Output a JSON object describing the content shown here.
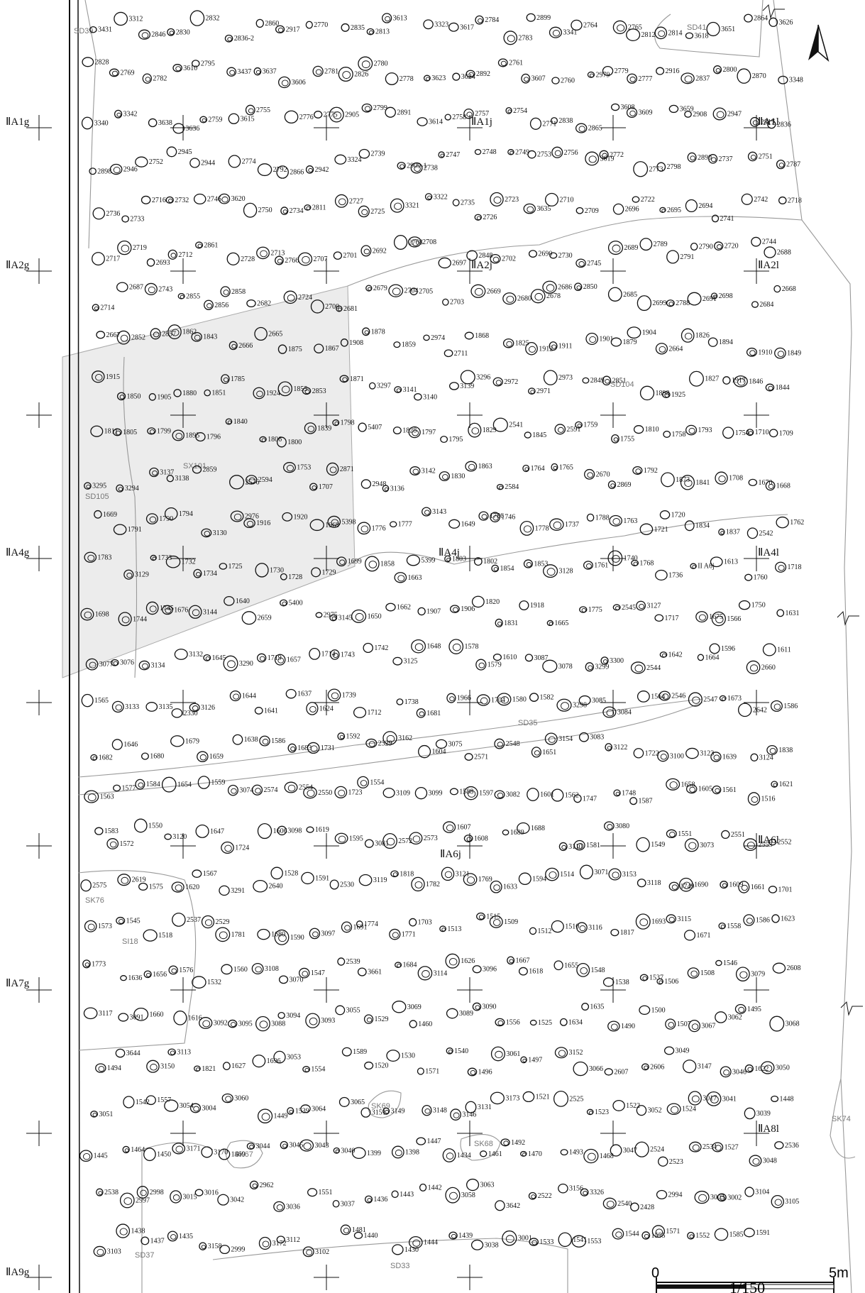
{
  "map": {
    "scale": {
      "start": "0",
      "ratio": "1/150",
      "end": "5m"
    },
    "north_arrow": "north-arrow",
    "grid_labels": [
      {
        "id": "A1g",
        "text": "ⅡA1g"
      },
      {
        "id": "A1j",
        "text": "ⅡA1j"
      },
      {
        "id": "A1l",
        "text": "ⅡA1l"
      },
      {
        "id": "A2g",
        "text": "ⅡA2g"
      },
      {
        "id": "A2j",
        "text": "ⅡA2j"
      },
      {
        "id": "A2l",
        "text": "ⅡA2l"
      },
      {
        "id": "A4g",
        "text": "ⅡA4g"
      },
      {
        "id": "A4j",
        "text": "ⅡA4j"
      },
      {
        "id": "A4l",
        "text": "ⅡA4l"
      },
      {
        "id": "A6j",
        "text": "ⅡA6j"
      },
      {
        "id": "A6l",
        "text": "ⅡA6l"
      },
      {
        "id": "A7g",
        "text": "ⅡA7g"
      },
      {
        "id": "A8l",
        "text": "ⅡA8l"
      },
      {
        "id": "A9g",
        "text": "ⅡA9g"
      }
    ],
    "features": [
      {
        "id": "SD39",
        "text": "SD39"
      },
      {
        "id": "SD41",
        "text": "SD41"
      },
      {
        "id": "SD104",
        "text": "SD104"
      },
      {
        "id": "SX101",
        "text": "SX101"
      },
      {
        "id": "SD105",
        "text": "SD105"
      },
      {
        "id": "SD35",
        "text": "SD35"
      },
      {
        "id": "SK76",
        "text": "SK76"
      },
      {
        "id": "SI18",
        "text": "SI18"
      },
      {
        "id": "SK69",
        "text": "SK69"
      },
      {
        "id": "SK67",
        "text": "SK67"
      },
      {
        "id": "SK68",
        "text": "SK68"
      },
      {
        "id": "SK74",
        "text": "SK74"
      },
      {
        "id": "SD37",
        "text": "SD37"
      },
      {
        "id": "SD33",
        "text": "SD33"
      }
    ],
    "pits": [
      "3431",
      "3312",
      "2846",
      "2830",
      "2832",
      "2836-2",
      "2860",
      "2917",
      "2770",
      "2835",
      "2813",
      "3613",
      "3323",
      "3617",
      "2784",
      "2783",
      "2899",
      "3341",
      "2764",
      "2765",
      "2812",
      "2814",
      "3618",
      "3651",
      "2864",
      "3626",
      "2828",
      "2769",
      "2782",
      "3610",
      "2795",
      "3437",
      "3637",
      "3606",
      "2781",
      "2826",
      "2780",
      "2778",
      "3623",
      "3624",
      "2892",
      "2761",
      "3607",
      "2760",
      "2979",
      "2779",
      "2777",
      "2916",
      "2837",
      "2800",
      "2870",
      "3348",
      "3340",
      "3342",
      "3638",
      "3636",
      "2759",
      "3615",
      "2755",
      "2776",
      "2775",
      "2905",
      "2799",
      "2891",
      "3614",
      "2758",
      "2757",
      "2754",
      "2771",
      "2838",
      "2865",
      "3608",
      "3609",
      "3659",
      "2908",
      "2947",
      "2817",
      "2836",
      "2898",
      "2946",
      "2752",
      "2945",
      "2944",
      "2774",
      "2792",
      "2866",
      "2942",
      "3324",
      "2739",
      "2909-1",
      "2738",
      "2747",
      "2748",
      "2749",
      "2753",
      "2756",
      "3619",
      "2772",
      "2773",
      "2798",
      "2890",
      "2737",
      "2751",
      "2787",
      "2736",
      "2733",
      "2716",
      "2732",
      "2746",
      "3620",
      "2750",
      "2734",
      "2811",
      "2727",
      "2725",
      "3321",
      "3322",
      "2735",
      "2726",
      "2723",
      "3635",
      "2710",
      "2709",
      "2696",
      "2722",
      "2695",
      "2694",
      "2741",
      "2742",
      "2718",
      "2717",
      "2719",
      "2693",
      "2712",
      "2861",
      "2728",
      "2713",
      "2766",
      "2707",
      "2701",
      "2692",
      "2768",
      "2708",
      "2697",
      "2848",
      "2702",
      "2690",
      "2730",
      "2745",
      "2689",
      "2789",
      "2791",
      "2790",
      "2720",
      "2744",
      "2688",
      "2714",
      "2687",
      "2743",
      "2855",
      "2856",
      "2858",
      "2682",
      "2724",
      "2700",
      "2681",
      "2679",
      "2704",
      "2705",
      "2703",
      "2669",
      "2680",
      "2678",
      "2686",
      "2850",
      "2685",
      "2699",
      "2788",
      "2691",
      "2698",
      "2684",
      "2668",
      "2667",
      "2852",
      "2857",
      "1862",
      "1843",
      "2666",
      "2665",
      "1875",
      "1867",
      "1908",
      "1878",
      "1859",
      "2974",
      "2711",
      "1868",
      "1825",
      "1912",
      "1911",
      "1901",
      "1879",
      "1904",
      "2664",
      "1826",
      "1894",
      "1910",
      "1849",
      "1915",
      "1850",
      "1905",
      "1880",
      "1851",
      "1785",
      "1924",
      "1855",
      "2853",
      "1871",
      "3297",
      "3141",
      "3140",
      "3139",
      "3296",
      "2972",
      "2971",
      "2973",
      "2849",
      "2851",
      "1898",
      "1925",
      "1827",
      "1917",
      "1846",
      "1844",
      "1811",
      "1805",
      "1799",
      "1895",
      "1796",
      "1840",
      "1806",
      "1800",
      "1839",
      "1798",
      "5407",
      "1828",
      "1797",
      "1795",
      "1829",
      "2541",
      "1845",
      "2591",
      "1759",
      "1755",
      "1810",
      "1758",
      "1793",
      "1754",
      "1710",
      "1709",
      "3295",
      "3294",
      "3137",
      "3138",
      "2859",
      "2576",
      "2594",
      "1753",
      "1707",
      "2871",
      "2948",
      "3136",
      "3142",
      "1830",
      "1863",
      "2584",
      "1764",
      "1765",
      "2670",
      "2869",
      "1792",
      "1873",
      "1841",
      "1708",
      "1670",
      "1668",
      "1669",
      "1791",
      "1790",
      "1794",
      "3130",
      "2976",
      "1916",
      "1920",
      "1969",
      "5398",
      "1776",
      "1777",
      "3143",
      "1649",
      "1786",
      "1746",
      "1778",
      "1737",
      "1788",
      "1763",
      "1721",
      "1720",
      "1834",
      "1837",
      "2542",
      "1762",
      "1783",
      "3129",
      "1733",
      "1732",
      "1734",
      "1725",
      "1730",
      "1728",
      "1729",
      "1699",
      "1858",
      "1663",
      "5399",
      "1803",
      "1802",
      "1854",
      "1853",
      "3128",
      "1761",
      "1740",
      "1768",
      "1736",
      "II A6j",
      "1613",
      "1760",
      "1718",
      "1698",
      "1744",
      "1745",
      "1676",
      "3144",
      "1640",
      "2659",
      "5400",
      "2975",
      "3145",
      "1650",
      "1662",
      "1907",
      "1906",
      "1820",
      "1831",
      "1918",
      "1665",
      "1775",
      "2545",
      "3127",
      "1717",
      "1675",
      "1566",
      "1750",
      "1631",
      "3077",
      "3076",
      "3134",
      "3132",
      "1645",
      "3290",
      "1719",
      "1657",
      "1714",
      "1743",
      "1742",
      "3125",
      "1648",
      "1578",
      "1579",
      "1610",
      "3087",
      "3078",
      "3299",
      "3300",
      "2544",
      "1642",
      "1664",
      "1596",
      "2660",
      "1611",
      "1565",
      "3133",
      "3135",
      "2330",
      "3126",
      "1644",
      "1641",
      "1637",
      "1624",
      "1739",
      "1712",
      "1738",
      "1681",
      "1966",
      "1704",
      "1580",
      "1582",
      "3298",
      "3085",
      "3084",
      "1564",
      "2546",
      "2547",
      "1673",
      "2642",
      "1586",
      "1682",
      "1646",
      "1680",
      "1679",
      "1659",
      "1638",
      "1586",
      "1683",
      "1731",
      "1592",
      "2329",
      "3162",
      "1604",
      "3075",
      "2571",
      "2548",
      "1651",
      "3154",
      "3083",
      "3122",
      "1722",
      "3100",
      "3123",
      "1639",
      "3124",
      "1838",
      "1563",
      "1577",
      "1584",
      "1654",
      "1559",
      "3074",
      "2574",
      "2554",
      "2550",
      "1723",
      "1554",
      "3109",
      "3099",
      "1588",
      "1597",
      "3082",
      "1601",
      "1562",
      "1747",
      "1748",
      "1587",
      "1658",
      "1605",
      "1561",
      "1516",
      "1621",
      "1583",
      "1572",
      "1550",
      "3120",
      "1647",
      "1724",
      "1606",
      "3098",
      "1619",
      "1595",
      "3081",
      "2572",
      "2573",
      "1607",
      "1608",
      "1689",
      "1688",
      "3110",
      "1581",
      "3080",
      "1549",
      "1551",
      "3073",
      "2551",
      "2553",
      "2552",
      "2575",
      "2619",
      "1575",
      "1620",
      "1567",
      "3291",
      "2640",
      "1528",
      "1591",
      "2530",
      "3119",
      "1818",
      "1782",
      "3121",
      "1769",
      "1633",
      "1594",
      "1514",
      "3071",
      "3153",
      "3118",
      "1749",
      "1690",
      "1609",
      "1661",
      "1701",
      "1573",
      "1545",
      "1518",
      "2537",
      "2529",
      "1781",
      "1680",
      "1590",
      "3097",
      "1691",
      "1774",
      "1771",
      "1703",
      "1513",
      "1515",
      "1509",
      "1512",
      "1510",
      "3116",
      "1817",
      "1693",
      "3115",
      "1671",
      "1558",
      "1586",
      "1623",
      "1773",
      "1636",
      "1656",
      "1576",
      "1532",
      "1560",
      "3108",
      "3070",
      "1547",
      "2539",
      "3661",
      "1684",
      "3114",
      "1626",
      "3096",
      "1667",
      "1618",
      "1655",
      "1548",
      "1538",
      "1537",
      "1506",
      "1508",
      "1546",
      "3079",
      "2608",
      "3117",
      "3091",
      "1660",
      "1616",
      "3092",
      "3095",
      "3088",
      "3094",
      "3093",
      "3055",
      "1529",
      "3069",
      "1460",
      "3089",
      "3090",
      "1556",
      "1525",
      "1634",
      "1635",
      "1490",
      "1500",
      "1507",
      "3067",
      "3062",
      "1495",
      "3068",
      "1494",
      "3644",
      "3150",
      "3113",
      "1821",
      "1627",
      "1696",
      "3053",
      "1554",
      "1589",
      "1520",
      "1530",
      "1571",
      "1540",
      "1496",
      "3061",
      "1497",
      "3152",
      "3066",
      "2607",
      "2606",
      "3049",
      "3147",
      "3046",
      "1622",
      "3050",
      "3051",
      "1542",
      "1557",
      "3054",
      "3004",
      "3060",
      "1449",
      "1539",
      "3064",
      "3065",
      "3151",
      "3149",
      "3148",
      "3146",
      "3131",
      "3173",
      "1521",
      "2525",
      "1523",
      "1522",
      "3052",
      "1524",
      "3017",
      "3041",
      "3039",
      "1448",
      "1445",
      "1464",
      "1450",
      "3171",
      "3170",
      "1469",
      "3044",
      "3045",
      "3043",
      "3040",
      "1399",
      "1398",
      "1447",
      "1434",
      "1461",
      "1492",
      "1470",
      "1493",
      "1468",
      "3047",
      "2524",
      "2523",
      "2534",
      "1527",
      "3048",
      "2536",
      "2538",
      "2997",
      "2998",
      "3015",
      "3016",
      "3042",
      "2962",
      "3036",
      "1551",
      "3037",
      "1436",
      "1443",
      "1442",
      "3058",
      "3063",
      "3642",
      "2522",
      "3156",
      "3326",
      "2540",
      "2428",
      "2994",
      "3003",
      "3002",
      "3104",
      "3105",
      "3103",
      "1438",
      "1437",
      "1435",
      "3158",
      "2999",
      "3172",
      "3112",
      "3102",
      "1481",
      "1440",
      "1430",
      "1444",
      "1439",
      "3038",
      "3001",
      "1533",
      "1541",
      "1553",
      "1544",
      "1555",
      "1571",
      "1552",
      "1585",
      "1591"
    ]
  }
}
